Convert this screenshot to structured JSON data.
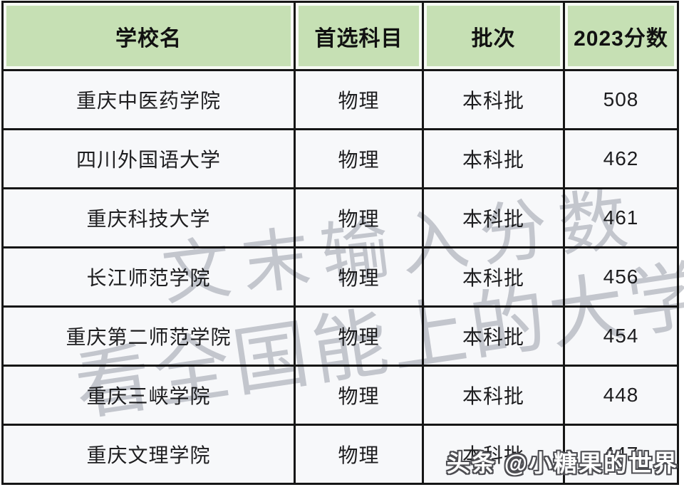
{
  "table": {
    "headers": {
      "school": "学校名",
      "subject": "首选科目",
      "batch": "批次",
      "score": "2023分数"
    },
    "rows": [
      {
        "school": "重庆中医药学院",
        "subject": "物理",
        "batch": "本科批",
        "score": "508"
      },
      {
        "school": "四川外国语大学",
        "subject": "物理",
        "batch": "本科批",
        "score": "462"
      },
      {
        "school": "重庆科技大学",
        "subject": "物理",
        "batch": "本科批",
        "score": "461"
      },
      {
        "school": "长江师范学院",
        "subject": "物理",
        "batch": "本科批",
        "score": "456"
      },
      {
        "school": "重庆第二师范学院",
        "subject": "物理",
        "batch": "本科批",
        "score": "454"
      },
      {
        "school": "重庆三峡学院",
        "subject": "物理",
        "batch": "本科批",
        "score": "448"
      },
      {
        "school": "重庆文理学院",
        "subject": "物理",
        "batch": "本科批",
        "score": "447"
      }
    ],
    "colors": {
      "header_bg": "#c6e0b4",
      "cell_bg": "#f7f8fa",
      "border": "#161616"
    }
  },
  "watermark": {
    "line1": "文末输入分数",
    "line2": "看全国能上的大学",
    "color": "#9fa1ab"
  },
  "attribution": {
    "credit_text": "头条 @小糖果的世界"
  },
  "chart_data": {
    "type": "table",
    "columns": [
      "学校名",
      "首选科目",
      "批次",
      "2023分数"
    ],
    "rows": [
      [
        "重庆中医药学院",
        "物理",
        "本科批",
        508
      ],
      [
        "四川外国语大学",
        "物理",
        "本科批",
        462
      ],
      [
        "重庆科技大学",
        "物理",
        "本科批",
        461
      ],
      [
        "长江师范学院",
        "物理",
        "本科批",
        456
      ],
      [
        "重庆第二师范学院",
        "物理",
        "本科批",
        454
      ],
      [
        "重庆三峡学院",
        "物理",
        "本科批",
        448
      ],
      [
        "重庆文理学院",
        "物理",
        "本科批",
        447
      ]
    ]
  }
}
